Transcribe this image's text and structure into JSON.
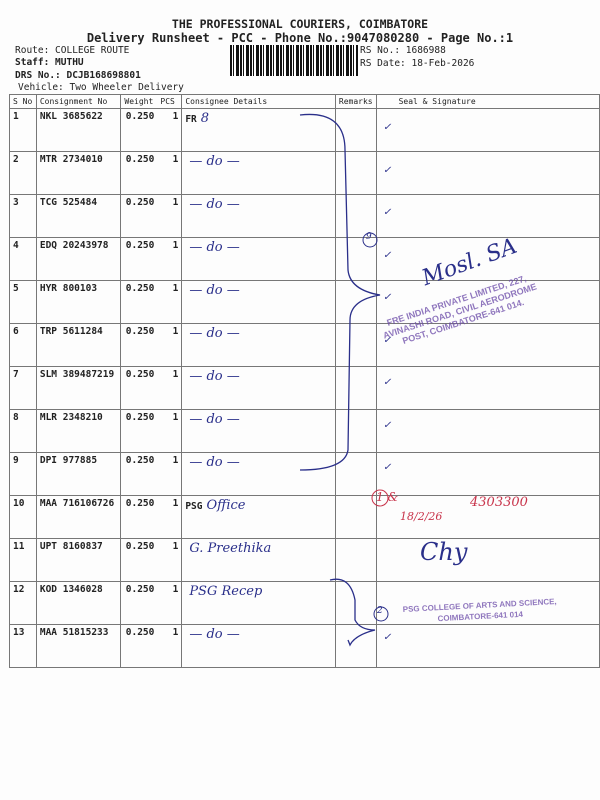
{
  "header": {
    "company": "THE PROFESSIONAL COURIERS, COIMBATORE",
    "subtitle": "Delivery Runsheet - PCC - Phone No.:9047080280 - Page No.:1",
    "route": "Route: COLLEGE ROUTE",
    "staff": "Staff: MUTHU",
    "drs": "DRS No.: DCJB168698801",
    "vehicle": "Vehicle: Two Wheeler Delivery",
    "rs_no": "RS No.: 1686988",
    "rs_date": "RS Date: 18-Feb-2026"
  },
  "table": {
    "columns": [
      "S No",
      "Consignment No",
      "Weight",
      "PCS",
      "Consignee Details",
      "Remarks",
      "Seal & Signature"
    ],
    "rows": [
      {
        "sno": "1",
        "cno": "NKL 3685622",
        "weight": "0.250",
        "pcs": "1",
        "details": "FR",
        "hand": "8"
      },
      {
        "sno": "2",
        "cno": "MTR 2734010",
        "weight": "0.250",
        "pcs": "1",
        "details": "",
        "hand": "— do —"
      },
      {
        "sno": "3",
        "cno": "TCG 525484",
        "weight": "0.250",
        "pcs": "1",
        "details": "",
        "hand": "— do —"
      },
      {
        "sno": "4",
        "cno": "EDQ 20243978",
        "weight": "0.250",
        "pcs": "1",
        "details": "",
        "hand": "— do —"
      },
      {
        "sno": "5",
        "cno": "HYR 800103",
        "weight": "0.250",
        "pcs": "1",
        "details": "",
        "hand": "— do —"
      },
      {
        "sno": "6",
        "cno": "TRP 5611284",
        "weight": "0.250",
        "pcs": "1",
        "details": "",
        "hand": "— do —"
      },
      {
        "sno": "7",
        "cno": "SLM 389487219",
        "weight": "0.250",
        "pcs": "1",
        "details": "",
        "hand": "— do —"
      },
      {
        "sno": "8",
        "cno": "MLR 2348210",
        "weight": "0.250",
        "pcs": "1",
        "details": "",
        "hand": "— do —"
      },
      {
        "sno": "9",
        "cno": "DPI 977885",
        "weight": "0.250",
        "pcs": "1",
        "details": "",
        "hand": "— do —"
      },
      {
        "sno": "10",
        "cno": "MAA 716106726",
        "weight": "0.250",
        "pcs": "1",
        "details": "PSG",
        "hand": "Office"
      },
      {
        "sno": "11",
        "cno": "UPT 8160837",
        "weight": "0.250",
        "pcs": "1",
        "details": "",
        "hand": "G. Preethika"
      },
      {
        "sno": "12",
        "cno": "KOD 1346028",
        "weight": "0.250",
        "pcs": "1",
        "details": "",
        "hand": "PSG Recep"
      },
      {
        "sno": "13",
        "cno": "MAA 51815233",
        "weight": "0.250",
        "pcs": "1",
        "details": "",
        "hand": "— do —"
      }
    ]
  },
  "annotations": {
    "group_mark_1": "9",
    "group_mark_2": "2",
    "signature_1": "Mosl. SA",
    "stamp_1": "FRE INDIA PRIVATE LIMITED, 227, AVINASHI ROAD, CIVIL AERODROME POST, COIMBATORE-641 014.",
    "red_note_mark": "1 &",
    "red_note_date": "18/2/26",
    "red_note_number": "4303300",
    "signature_2": "Chy",
    "stamp_2": "PSG COLLEGE OF ARTS AND SCIENCE, COIMBATORE-641 014",
    "tick": "✓"
  },
  "colors": {
    "ink": "#2a2f8a",
    "stamp": "#6b4aa8",
    "red_ink": "#c8334a"
  }
}
